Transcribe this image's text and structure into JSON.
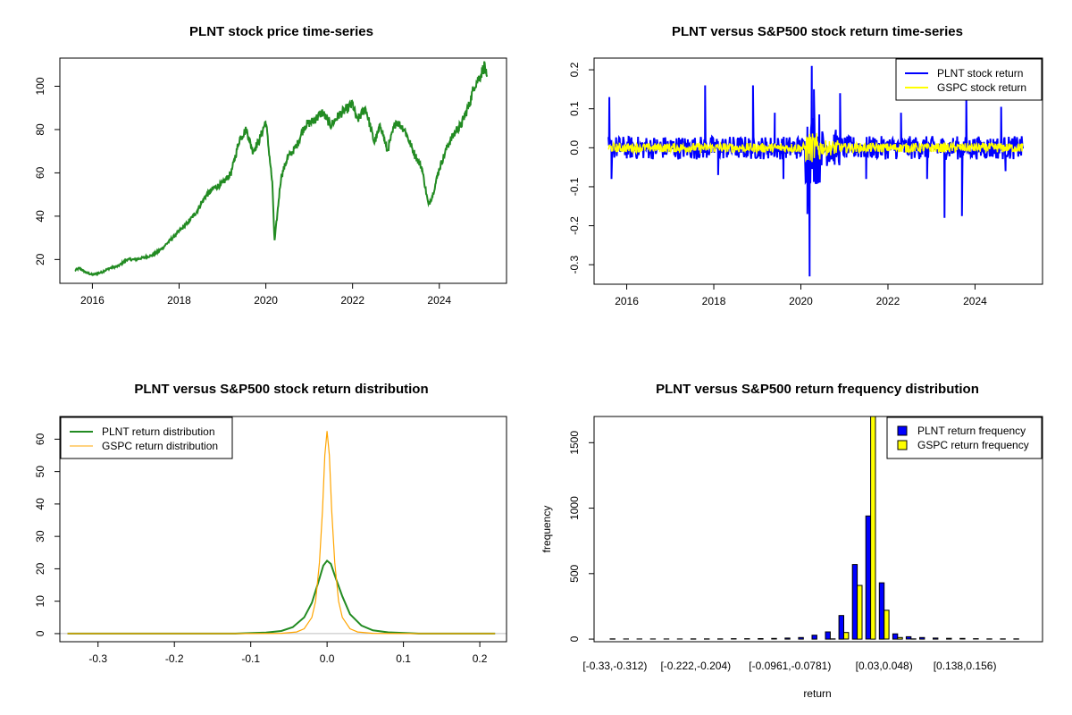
{
  "chart_data": [
    {
      "type": "line",
      "title": "PLNT stock price time-series",
      "xlabel": "",
      "ylabel": "",
      "xlim": [
        2015.25,
        2025.55
      ],
      "ylim": [
        9,
        113
      ],
      "x_ticks": [
        "2016",
        "2018",
        "2020",
        "2022",
        "2024"
      ],
      "y_ticks": [
        "20",
        "40",
        "60",
        "80",
        "100"
      ],
      "colors": {
        "line": "#228B22"
      },
      "series": [
        {
          "x": [
            2015.6,
            2015.7,
            2015.85,
            2016.0,
            2016.2,
            2016.4,
            2016.6,
            2016.8,
            2017.0,
            2017.2,
            2017.4,
            2017.6,
            2017.8,
            2018.0,
            2018.2,
            2018.4,
            2018.6,
            2018.8,
            2019.0,
            2019.2,
            2019.4,
            2019.55,
            2019.7,
            2019.85,
            2020.0,
            2020.15,
            2020.2,
            2020.35,
            2020.5,
            2020.7,
            2020.9,
            2021.1,
            2021.3,
            2021.5,
            2021.7,
            2021.9,
            2022.0,
            2022.1,
            2022.3,
            2022.5,
            2022.65,
            2022.8,
            2023.0,
            2023.2,
            2023.4,
            2023.6,
            2023.75,
            2023.85,
            2024.0,
            2024.2,
            2024.4,
            2024.5,
            2024.7,
            2024.8,
            2024.95,
            2025.05,
            2025.1
          ],
          "y": [
            15,
            16,
            14,
            13,
            14,
            16,
            17,
            20,
            20,
            21,
            22,
            25,
            29,
            33,
            37,
            42,
            49,
            53,
            55,
            60,
            76,
            80,
            70,
            75,
            84,
            55,
            28,
            58,
            67,
            72,
            82,
            84,
            88,
            82,
            87,
            90,
            92,
            84,
            90,
            74,
            82,
            70,
            84,
            80,
            70,
            62,
            45,
            50,
            62,
            73,
            80,
            82,
            92,
            100,
            105,
            110,
            102
          ]
        }
      ]
    },
    {
      "type": "line",
      "title": "PLNT versus S&P500 stock return time-series",
      "xlabel": "",
      "ylabel": "",
      "xlim": [
        2015.25,
        2025.55
      ],
      "ylim": [
        -0.35,
        0.23
      ],
      "x_ticks": [
        "2016",
        "2018",
        "2020",
        "2022",
        "2024"
      ],
      "y_ticks": [
        "-0.3",
        "-0.2",
        "-0.1",
        "0.0",
        "0.1",
        "0.2"
      ],
      "legend": {
        "position": "top-right",
        "entries": [
          "PLNT stock return",
          "GSPC stock return"
        ]
      },
      "colors": {
        "plnt": "#0000FF",
        "gspc": "#FFFF00"
      },
      "spikes": [
        {
          "x": 2015.6,
          "y": 0.13
        },
        {
          "x": 2015.65,
          "y": -0.08
        },
        {
          "x": 2017.8,
          "y": 0.16
        },
        {
          "x": 2018.1,
          "y": -0.07
        },
        {
          "x": 2018.9,
          "y": 0.16
        },
        {
          "x": 2019.4,
          "y": 0.09
        },
        {
          "x": 2019.6,
          "y": -0.08
        },
        {
          "x": 2020.15,
          "y": -0.17
        },
        {
          "x": 2020.2,
          "y": -0.33
        },
        {
          "x": 2020.25,
          "y": 0.21
        },
        {
          "x": 2020.3,
          "y": 0.15
        },
        {
          "x": 2020.4,
          "y": -0.09
        },
        {
          "x": 2020.9,
          "y": 0.14
        },
        {
          "x": 2021.5,
          "y": -0.08
        },
        {
          "x": 2022.3,
          "y": 0.09
        },
        {
          "x": 2022.9,
          "y": -0.08
        },
        {
          "x": 2023.3,
          "y": -0.18
        },
        {
          "x": 2023.7,
          "y": -0.175
        },
        {
          "x": 2023.8,
          "y": 0.13
        },
        {
          "x": 2024.6,
          "y": 0.105
        },
        {
          "x": 2024.7,
          "y": -0.06
        }
      ],
      "series": [
        {
          "name": "PLNT stock return",
          "band": 0.03
        },
        {
          "name": "GSPC stock return",
          "band": 0.012
        }
      ]
    },
    {
      "type": "line",
      "title": "PLNT versus S&P500 stock return distribution",
      "xlabel": "",
      "ylabel": "",
      "xlim": [
        -0.35,
        0.235
      ],
      "ylim": [
        -2.5,
        67
      ],
      "x_ticks": [
        "-0.3",
        "-0.2",
        "-0.1",
        "0.0",
        "0.1",
        "0.2"
      ],
      "y_ticks": [
        "0",
        "10",
        "20",
        "30",
        "40",
        "50",
        "60"
      ],
      "legend": {
        "position": "top-left",
        "entries": [
          "PLNT return distribution",
          "GSPC return distribution"
        ]
      },
      "colors": {
        "plnt": "#228B22",
        "gspc": "#FFA500"
      },
      "series": [
        {
          "name": "PLNT return distribution",
          "x": [
            -0.34,
            -0.12,
            -0.08,
            -0.06,
            -0.045,
            -0.03,
            -0.02,
            -0.01,
            -0.005,
            0.0,
            0.005,
            0.01,
            0.02,
            0.03,
            0.045,
            0.06,
            0.08,
            0.12,
            0.22
          ],
          "y": [
            0,
            0,
            0.3,
            0.8,
            2,
            5,
            9.5,
            17,
            21,
            22.5,
            21.5,
            18,
            11.5,
            6,
            2.5,
            1,
            0.4,
            0,
            0
          ]
        },
        {
          "name": "GSPC return distribution",
          "x": [
            -0.34,
            -0.1,
            -0.06,
            -0.04,
            -0.03,
            -0.02,
            -0.015,
            -0.01,
            -0.006,
            -0.003,
            0.0,
            0.003,
            0.006,
            0.01,
            0.015,
            0.02,
            0.03,
            0.04,
            0.06,
            0.1,
            0.22
          ],
          "y": [
            0,
            0,
            0.1,
            0.5,
            1.5,
            5,
            10,
            22,
            38,
            55,
            62.5,
            55,
            38,
            22,
            10,
            5,
            1.5,
            0.5,
            0.1,
            0,
            0
          ]
        }
      ]
    },
    {
      "type": "bar",
      "title": "PLNT versus S&P500 return frequency distribution",
      "xlabel": "return",
      "ylabel": "frequency",
      "ylim": [
        -20,
        1700
      ],
      "y_ticks": [
        "0",
        "500",
        "1000",
        "1500"
      ],
      "legend": {
        "position": "top-right",
        "entries": [
          "PLNT return frequency",
          "GSPC return frequency"
        ]
      },
      "colors": {
        "plnt": "#0000FF",
        "gspc": "#FFFF00"
      },
      "bin_count": 31,
      "category_labels": [
        {
          "bin": 0,
          "text": "[-0.33,-0.312)"
        },
        {
          "bin": 6,
          "text": "[-0.222,-0.204)"
        },
        {
          "bin": 13,
          "text": "[-0.0961,-0.0781)"
        },
        {
          "bin": 20,
          "text": "[0.03,0.048)"
        },
        {
          "bin": 26,
          "text": "[0.138,0.156)"
        }
      ],
      "series": [
        {
          "name": "PLNT return frequency",
          "values": [
            2,
            1,
            1,
            1,
            1,
            1,
            2,
            2,
            2,
            3,
            3,
            4,
            5,
            8,
            12,
            30,
            55,
            180,
            570,
            940,
            430,
            40,
            18,
            12,
            8,
            6,
            5,
            3,
            2,
            2,
            2
          ]
        },
        {
          "name": "GSPC return frequency",
          "values": [
            0,
            0,
            0,
            0,
            0,
            0,
            0,
            0,
            0,
            0,
            0,
            0,
            0,
            0,
            0,
            0,
            2,
            50,
            410,
            1700,
            220,
            12,
            2,
            0,
            0,
            0,
            0,
            0,
            0,
            0,
            0
          ]
        }
      ]
    }
  ]
}
